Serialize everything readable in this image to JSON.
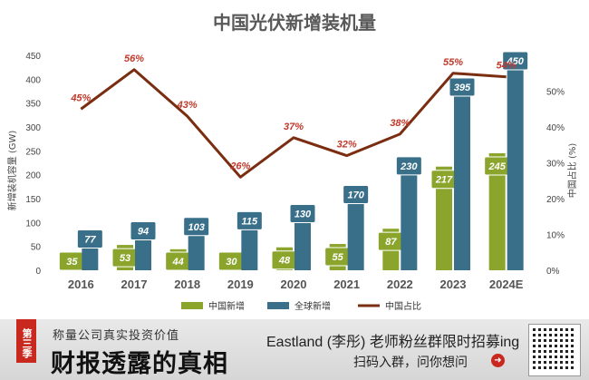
{
  "chart_data": {
    "type": "bar",
    "title": "中国光伏新增装机量",
    "categories": [
      "2016",
      "2017",
      "2018",
      "2019",
      "2020",
      "2021",
      "2022",
      "2023",
      "2024E"
    ],
    "series": [
      {
        "name": "中国新增",
        "kind": "bar",
        "axis": "left",
        "color": "#8ba52c",
        "values": [
          35,
          53,
          44,
          30,
          48,
          55,
          87,
          217,
          245
        ]
      },
      {
        "name": "全球新增",
        "kind": "bar",
        "axis": "left",
        "color": "#3a6f8a",
        "values": [
          77,
          94,
          103,
          115,
          130,
          170,
          230,
          395,
          450
        ]
      },
      {
        "name": "中国占比",
        "kind": "line",
        "axis": "right",
        "color": "#7a2d10",
        "values": [
          45,
          56,
          43,
          26,
          37,
          32,
          38,
          55,
          54
        ]
      }
    ],
    "line_labels": [
      "45%",
      "56%",
      "43%",
      "26%",
      "37%",
      "32%",
      "38%",
      "55%",
      "54%"
    ],
    "ylabel": "新增装机容量 (GW)",
    "y2label": "中国占比 (%)",
    "ylim": [
      0,
      450
    ],
    "y_ticks": [
      "0",
      "50",
      "100",
      "150",
      "200",
      "250",
      "300",
      "350",
      "400",
      "450"
    ],
    "y2lim": [
      0,
      60
    ],
    "y2_ticks": [
      "0%",
      "10%",
      "20%",
      "30%",
      "40%",
      "50%"
    ],
    "grid": false,
    "legend": "bottom"
  },
  "footer": {
    "badge": "第三季",
    "tagline": "称量公司真实投资价值",
    "headline": "财报透露的真相",
    "promo": "Eastland (李彤) 老师粉丝群限时招募ing",
    "sub": "扫码入群，问你想问",
    "arrow_icon": "➜"
  }
}
